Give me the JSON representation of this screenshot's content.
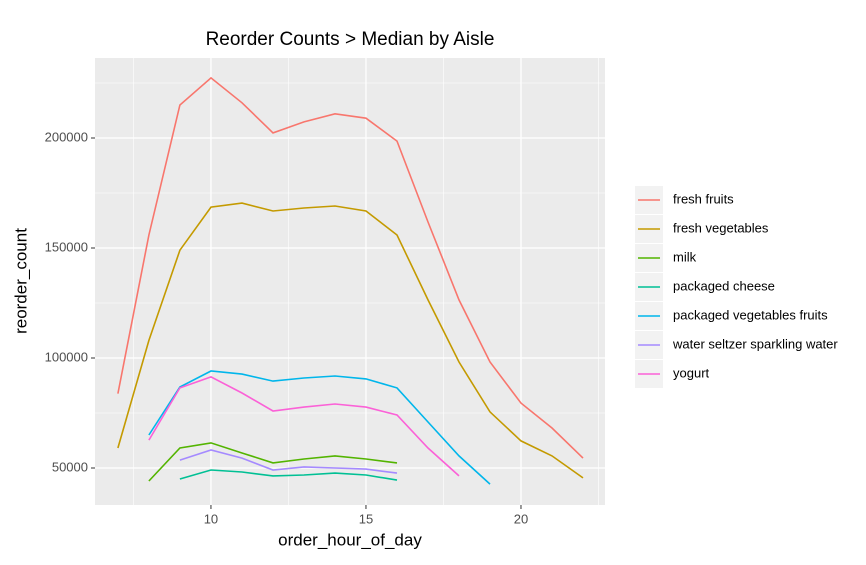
{
  "chart_data": {
    "type": "line",
    "title": "Reorder Counts > Median by Aisle",
    "x_label": "order_hour_of_day",
    "y_label": "reorder_count",
    "xlim": [
      6.26,
      22.71
    ],
    "ylim": [
      33182,
      236364
    ],
    "xticks": [
      10,
      15,
      20
    ],
    "yticks": [
      50000,
      100000,
      150000,
      200000
    ],
    "grid": true,
    "legend": "right",
    "series": [
      {
        "name": "fresh fruits",
        "color": "#F8766D",
        "x": [
          7,
          8,
          9,
          10,
          11,
          12,
          13,
          14,
          15,
          16,
          17,
          18,
          19,
          20,
          21,
          22
        ],
        "values": [
          83800,
          155900,
          215000,
          227300,
          216000,
          202300,
          207300,
          211000,
          209000,
          198600,
          161800,
          126400,
          98200,
          79500,
          68200,
          54500
        ]
      },
      {
        "name": "fresh vegetables",
        "color": "#C49A00",
        "x": [
          7,
          8,
          9,
          10,
          11,
          12,
          13,
          14,
          15,
          16,
          17,
          18,
          19,
          20,
          21,
          22
        ],
        "values": [
          59100,
          108000,
          149000,
          168600,
          170400,
          166800,
          168200,
          169100,
          166800,
          155900,
          126400,
          98200,
          75500,
          62300,
          55500,
          45500
        ]
      },
      {
        "name": "milk",
        "color": "#53B400",
        "x": [
          8,
          9,
          10,
          11,
          12,
          13,
          14,
          15,
          16
        ],
        "values": [
          44100,
          59100,
          61400,
          56800,
          52300,
          54100,
          55500,
          54100,
          52300
        ]
      },
      {
        "name": "packaged cheese",
        "color": "#00C094",
        "x": [
          9,
          10,
          11,
          12,
          13,
          14,
          15,
          16
        ],
        "values": [
          45000,
          49100,
          48200,
          46400,
          46800,
          47700,
          46800,
          44500
        ]
      },
      {
        "name": "packaged vegetables fruits",
        "color": "#00B6EB",
        "x": [
          8,
          9,
          10,
          11,
          12,
          13,
          14,
          15,
          16,
          17,
          18,
          19
        ],
        "values": [
          65000,
          86800,
          94100,
          92700,
          89500,
          90900,
          91800,
          90500,
          86400,
          70900,
          55500,
          42700
        ]
      },
      {
        "name": "water seltzer sparkling water",
        "color": "#A58AFF",
        "x": [
          9,
          10,
          11,
          12,
          13,
          14,
          15,
          16
        ],
        "values": [
          53600,
          58200,
          54500,
          49100,
          50500,
          50000,
          49500,
          47700
        ]
      },
      {
        "name": "yogurt",
        "color": "#FB61D7",
        "x": [
          8,
          9,
          10,
          11,
          12,
          13,
          14,
          15,
          16,
          17,
          18
        ],
        "values": [
          62700,
          86400,
          91400,
          84100,
          75900,
          77700,
          79100,
          77700,
          74100,
          59100,
          46400
        ]
      }
    ]
  }
}
